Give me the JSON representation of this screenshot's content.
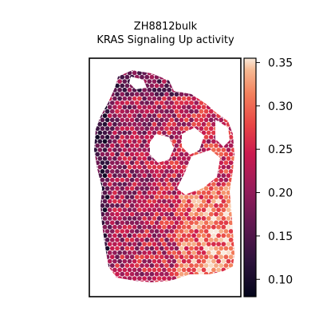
{
  "chart_data": {
    "type": "heatmap",
    "title": "ZH8812bulk",
    "subtitle": "KRAS Signaling Up activity",
    "xlabel": "",
    "ylabel": "",
    "colorbar": {
      "colormap": "rocket",
      "range": [
        0.08,
        0.355
      ],
      "ticks": [
        0.1,
        0.15,
        0.2,
        0.25,
        0.3,
        0.35
      ],
      "tick_labels": [
        "0.10",
        "0.15",
        "0.20",
        "0.25",
        "0.30",
        "0.35"
      ]
    },
    "spot_value_summary": {
      "min": 0.08,
      "max": 0.35,
      "low_value_region": "left edge and top-left border",
      "high_value_region": "right side and lower-right"
    },
    "grid": false,
    "legend": "none"
  }
}
